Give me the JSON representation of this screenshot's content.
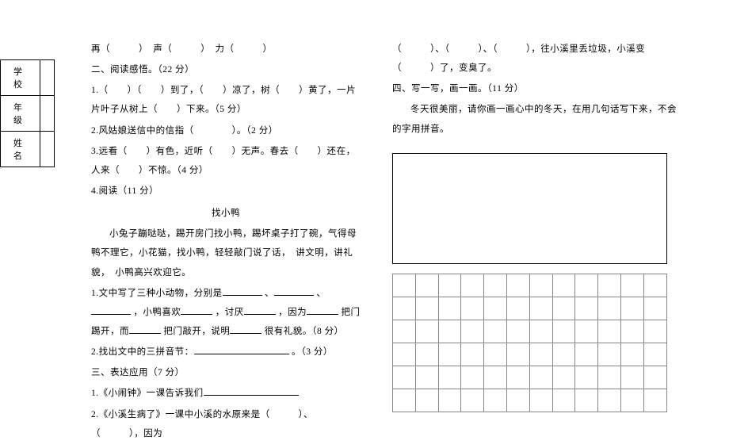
{
  "side": {
    "school": "学　校",
    "class": "年　级",
    "name": "姓　名"
  },
  "left": {
    "line_top": "再（　　　）　声（　　　）　力（　　　）",
    "section2_title": "二、阅读感悟。（22 分）",
    "q1": "1.（　　）（　　）到了，（　　）凉了，树（　　）黄了，一片片叶子从树上（　　）下来。（5 分）",
    "q2": "2.风姑娘送信中的信指（　　　　）。（2 分）",
    "q3": "3.远看（　　）有色，近听（　　）无声。春去（　　）还在，人来（　　）不惊。（4 分）",
    "q4_title": "4.阅读（11 分）",
    "passage_title": "找小鸭",
    "passage1": "小兔子蹦哒哒，踢开房门找小鸭，踢坏桌子打了碗，气得母鸭不理它，小花猫，找小鸭，轻轻敲门说了话，　讲文明，讲礼貌，　小鸭高兴欢迎它。",
    "pq1_a": "1.文中写了三种小动物，分别是",
    "pq1_b": "、",
    "pq1_c": "、",
    "pq1_d": "，小鸭喜欢",
    "pq1_e": "，讨厌",
    "pq1_f": "，因为",
    "pq1_g": "把门踢开，而",
    "pq1_h": "把门敲开，说明",
    "pq1_i": "很有礼貌。（8 分）",
    "pq2_a": "2.找出文中的三拼音节：",
    "pq2_b": "。（3 分）",
    "section3_title": "三、表达应用（7 分）",
    "s3q1_a": "1.《小闹钟》一课告诉我们",
    "s3q2": "2.《小溪生病了》一课中小溪的水原来是（　　　）、（　　　），因为"
  },
  "right": {
    "cont": "（　　　）、（　　　）、（　　　），往小溪里丢垃圾，小溪变（　　　）了，变臭了。",
    "section4_title": "四、写一写，画一画。（11 分）",
    "s4_desc": "冬天很美丽，请你画一画心中的冬天，在用几句话写下来，不会的字用拼音。"
  },
  "style": {
    "font_family": "SimSun",
    "font_size": 12,
    "text_color": "#000000",
    "bg_color": "#ffffff",
    "grid_border_color": "#888888",
    "box_border_color": "#000000",
    "grid": {
      "rows": 6,
      "cols": 12,
      "cell": 29
    }
  }
}
